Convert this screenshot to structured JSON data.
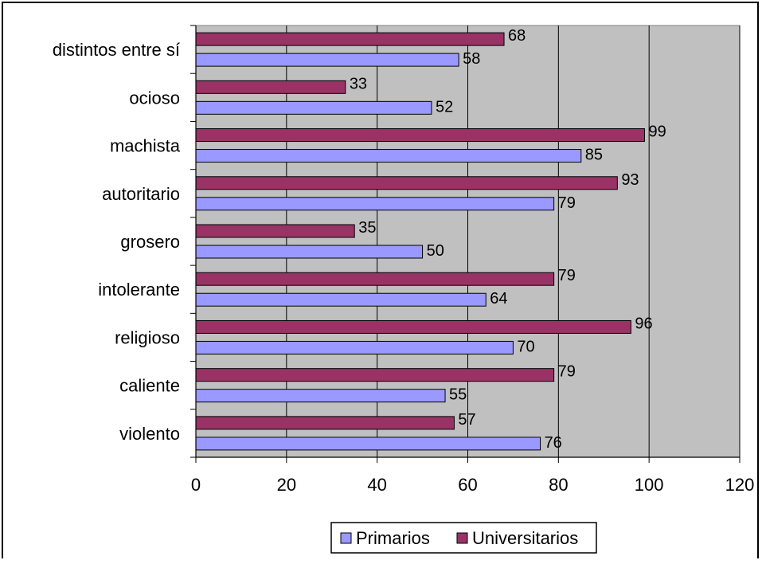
{
  "chart_data": {
    "type": "bar",
    "orientation": "horizontal",
    "categories": [
      "distintos entre sí",
      "ocioso",
      "machista",
      "autoritario",
      "grosero",
      "intolerante",
      "religioso",
      "caliente",
      "violento"
    ],
    "series": [
      {
        "name": "Primarios",
        "values": [
          58,
          52,
          85,
          79,
          50,
          64,
          70,
          55,
          76
        ]
      },
      {
        "name": "Universitarios",
        "values": [
          68,
          33,
          99,
          93,
          35,
          79,
          96,
          79,
          57
        ]
      }
    ],
    "x_ticks": [
      "0",
      "20",
      "40",
      "60",
      "80",
      "100",
      "120"
    ],
    "xlim": [
      0,
      120
    ],
    "grid": "vertical",
    "legend_position": "bottom",
    "colors": {
      "Primarios": "#9999ff",
      "Universitarios": "#993366",
      "plot_background": "#c0c0c0",
      "gridline": "#000000"
    }
  }
}
